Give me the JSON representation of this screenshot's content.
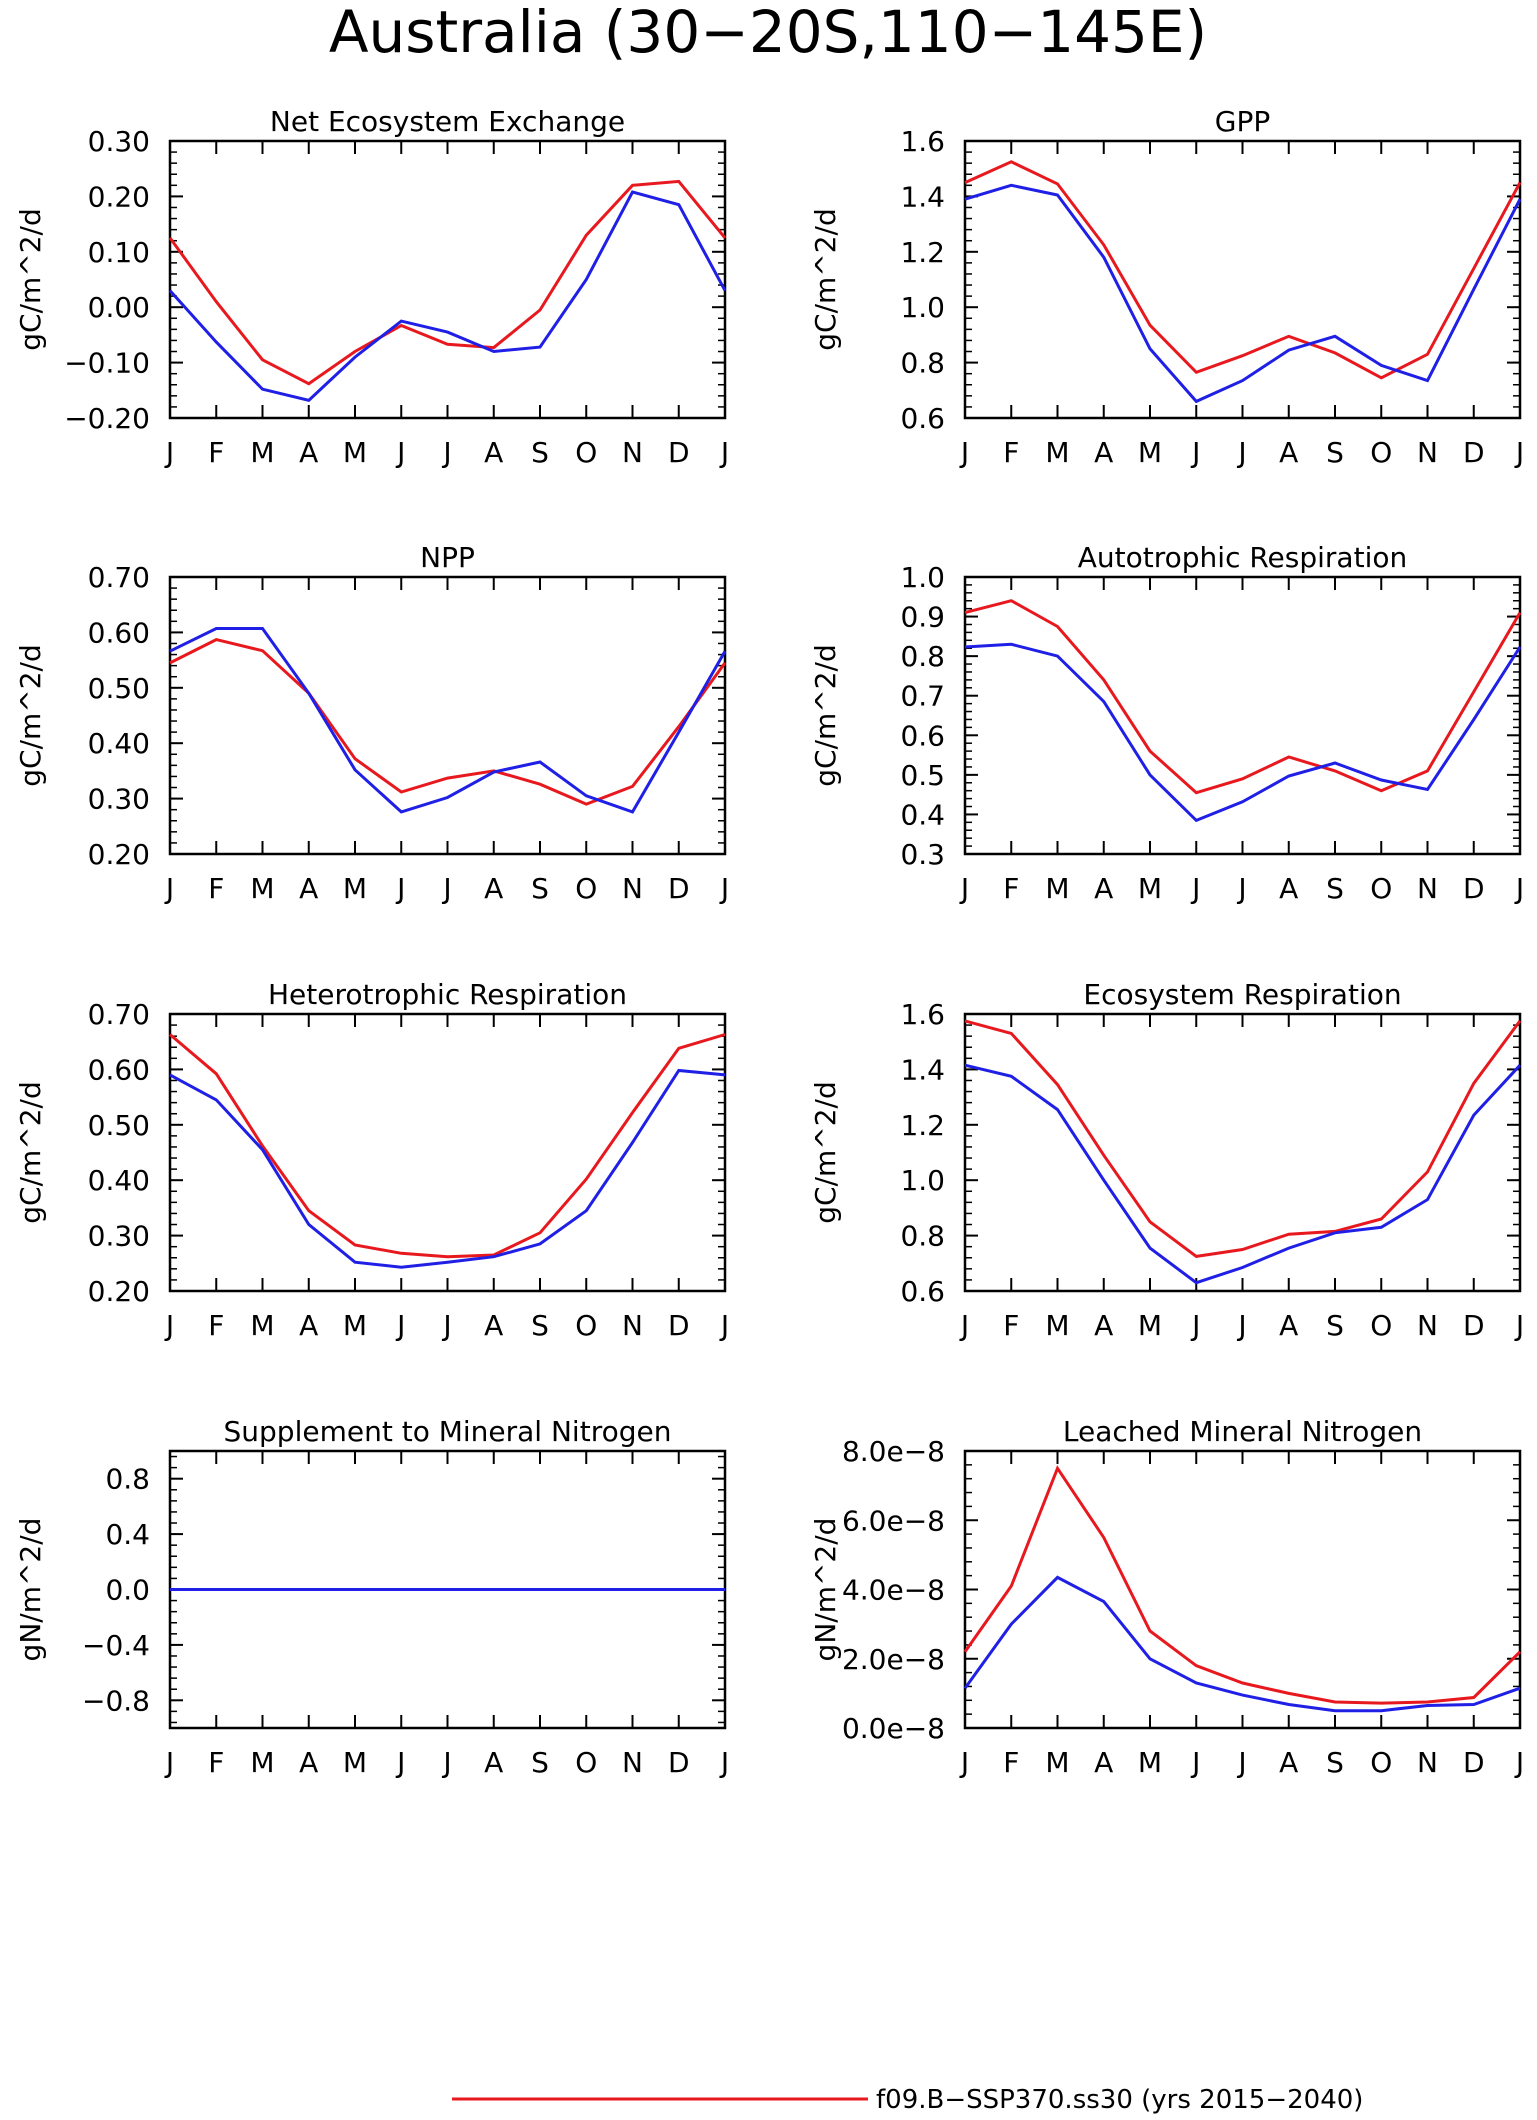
{
  "title": "Australia (30−20S,110−145E)",
  "months": [
    "J",
    "F",
    "M",
    "A",
    "M",
    "J",
    "J",
    "A",
    "S",
    "O",
    "N",
    "D",
    "J"
  ],
  "colors": {
    "red": "#e8191e",
    "blue": "#1f1fe6"
  },
  "legend": {
    "red_label": "f09.B−SSP370.ss30 (yrs 2015−2040)"
  },
  "chart_data": [
    {
      "type": "line",
      "title": "Net Ecosystem Exchange",
      "ylabel": "gC/m^2/d",
      "ylim": [
        -0.2,
        0.3
      ],
      "yticks": [
        -0.2,
        -0.1,
        0.0,
        0.1,
        0.2,
        0.3
      ],
      "yticklabels": [
        "−0.20",
        "−0.10",
        "0.00",
        "0.10",
        "0.20",
        "0.30"
      ],
      "series": [
        {
          "color": "red",
          "values": [
            0.125,
            0.01,
            -0.095,
            -0.138,
            -0.08,
            -0.033,
            -0.067,
            -0.073,
            -0.005,
            0.13,
            0.22,
            0.227,
            0.125
          ]
        },
        {
          "color": "blue",
          "values": [
            0.03,
            -0.063,
            -0.148,
            -0.168,
            -0.09,
            -0.025,
            -0.045,
            -0.08,
            -0.072,
            0.05,
            0.208,
            0.185,
            0.03
          ]
        }
      ]
    },
    {
      "type": "line",
      "title": "GPP",
      "ylabel": "gC/m^2/d",
      "ylim": [
        0.6,
        1.6
      ],
      "yticks": [
        0.6,
        0.8,
        1.0,
        1.2,
        1.4,
        1.6
      ],
      "yticklabels": [
        "0.6",
        "0.8",
        "1.0",
        "1.2",
        "1.4",
        "1.6"
      ],
      "series": [
        {
          "color": "red",
          "values": [
            1.45,
            1.525,
            1.445,
            1.225,
            0.935,
            0.765,
            0.825,
            0.895,
            0.835,
            0.745,
            0.83,
            1.14,
            1.45
          ]
        },
        {
          "color": "blue",
          "values": [
            1.39,
            1.44,
            1.405,
            1.18,
            0.85,
            0.66,
            0.735,
            0.845,
            0.895,
            0.79,
            0.735,
            1.065,
            1.39
          ]
        }
      ]
    },
    {
      "type": "line",
      "title": "NPP",
      "ylabel": "gC/m^2/d",
      "ylim": [
        0.2,
        0.7
      ],
      "yticks": [
        0.2,
        0.3,
        0.4,
        0.5,
        0.6,
        0.7
      ],
      "yticklabels": [
        "0.20",
        "0.30",
        "0.40",
        "0.50",
        "0.60",
        "0.70"
      ],
      "series": [
        {
          "color": "red",
          "values": [
            0.545,
            0.587,
            0.567,
            0.49,
            0.372,
            0.312,
            0.337,
            0.35,
            0.326,
            0.29,
            0.322,
            0.43,
            0.545
          ]
        },
        {
          "color": "blue",
          "values": [
            0.566,
            0.607,
            0.607,
            0.49,
            0.352,
            0.276,
            0.302,
            0.348,
            0.366,
            0.305,
            0.276,
            0.42,
            0.566
          ]
        }
      ]
    },
    {
      "type": "line",
      "title": "Autotrophic Respiration",
      "ylabel": "gC/m^2/d",
      "ylim": [
        0.3,
        1.0
      ],
      "yticks": [
        0.3,
        0.4,
        0.5,
        0.6,
        0.7,
        0.8,
        0.9,
        1.0
      ],
      "yticklabels": [
        "0.3",
        "0.4",
        "0.5",
        "0.6",
        "0.7",
        "0.8",
        "0.9",
        "1.0"
      ],
      "series": [
        {
          "color": "red",
          "values": [
            0.91,
            0.94,
            0.875,
            0.74,
            0.56,
            0.455,
            0.49,
            0.545,
            0.51,
            0.46,
            0.51,
            0.71,
            0.91
          ]
        },
        {
          "color": "blue",
          "values": [
            0.823,
            0.83,
            0.8,
            0.685,
            0.5,
            0.385,
            0.432,
            0.497,
            0.53,
            0.487,
            0.463,
            0.64,
            0.823
          ]
        }
      ]
    },
    {
      "type": "line",
      "title": "Heterotrophic Respiration",
      "ylabel": "gC/m^2/d",
      "ylim": [
        0.2,
        0.7
      ],
      "yticks": [
        0.2,
        0.3,
        0.4,
        0.5,
        0.6,
        0.7
      ],
      "yticklabels": [
        "0.20",
        "0.30",
        "0.40",
        "0.50",
        "0.60",
        "0.70"
      ],
      "series": [
        {
          "color": "red",
          "values": [
            0.663,
            0.592,
            0.462,
            0.345,
            0.283,
            0.268,
            0.262,
            0.265,
            0.305,
            0.402,
            0.522,
            0.638,
            0.663
          ]
        },
        {
          "color": "blue",
          "values": [
            0.59,
            0.545,
            0.455,
            0.32,
            0.252,
            0.243,
            0.252,
            0.262,
            0.285,
            0.345,
            0.468,
            0.598,
            0.59
          ]
        }
      ]
    },
    {
      "type": "line",
      "title": "Ecosystem Respiration",
      "ylabel": "gC/m^2/d",
      "ylim": [
        0.6,
        1.6
      ],
      "yticks": [
        0.6,
        0.8,
        1.0,
        1.2,
        1.4,
        1.6
      ],
      "yticklabels": [
        "0.6",
        "0.8",
        "1.0",
        "1.2",
        "1.4",
        "1.6"
      ],
      "series": [
        {
          "color": "red",
          "values": [
            1.575,
            1.53,
            1.345,
            1.09,
            0.85,
            0.725,
            0.75,
            0.805,
            0.815,
            0.86,
            1.03,
            1.35,
            1.575
          ]
        },
        {
          "color": "blue",
          "values": [
            1.415,
            1.375,
            1.255,
            1.0,
            0.755,
            0.63,
            0.685,
            0.755,
            0.81,
            0.83,
            0.93,
            1.235,
            1.415
          ]
        }
      ]
    },
    {
      "type": "line",
      "title": "Supplement to Mineral Nitrogen",
      "ylabel": "gN/m^2/d",
      "ylim": [
        -1.0,
        1.0
      ],
      "yticks": [
        -0.8,
        -0.4,
        0.0,
        0.4,
        0.8
      ],
      "yticklabels": [
        "−0.8",
        "−0.4",
        "0.0",
        "0.4",
        "0.8"
      ],
      "series": [
        {
          "color": "red",
          "values": [
            0,
            0,
            0,
            0,
            0,
            0,
            0,
            0,
            0,
            0,
            0,
            0,
            0
          ]
        },
        {
          "color": "blue",
          "values": [
            0,
            0,
            0,
            0,
            0,
            0,
            0,
            0,
            0,
            0,
            0,
            0,
            0
          ]
        }
      ]
    },
    {
      "type": "line",
      "title": "Leached Mineral Nitrogen",
      "ylabel": "gN/m^2/d",
      "ylim": [
        0.0,
        8e-08
      ],
      "yticks": [
        0.0,
        2e-08,
        4e-08,
        6e-08,
        8e-08
      ],
      "yticklabels": [
        "0.0e−8",
        "2.0e−8",
        "4.0e−8",
        "6.0e−8",
        "8.0e−8"
      ],
      "series": [
        {
          "color": "red",
          "values": [
            2.2e-08,
            4.1e-08,
            7.5e-08,
            5.5e-08,
            2.8e-08,
            1.8e-08,
            1.3e-08,
            1e-08,
            7.5e-09,
            7.2e-09,
            7.5e-09,
            8.8e-09,
            2.2e-08
          ]
        },
        {
          "color": "blue",
          "values": [
            1.15e-08,
            3e-08,
            4.35e-08,
            3.65e-08,
            2e-08,
            1.3e-08,
            9.5e-09,
            6.8e-09,
            5e-09,
            5e-09,
            6.5e-09,
            6.8e-09,
            1.15e-08
          ]
        }
      ]
    }
  ]
}
